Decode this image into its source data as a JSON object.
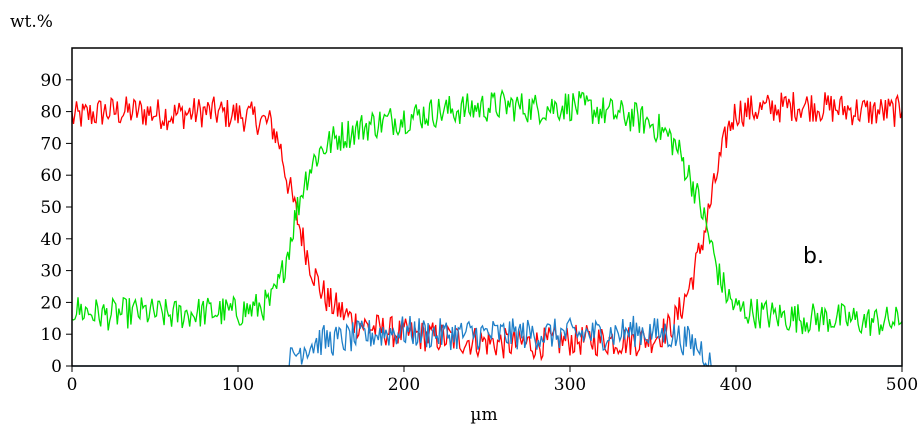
{
  "chart_data": {
    "type": "line",
    "title": "",
    "xlabel": "µm",
    "ylabel": "wt.%",
    "xlim": [
      0,
      500
    ],
    "ylim": [
      0,
      100
    ],
    "x_ticks": [
      0,
      100,
      200,
      300,
      400,
      500
    ],
    "y_ticks": [
      0,
      10,
      20,
      30,
      40,
      50,
      60,
      70,
      80,
      90
    ],
    "grid": false,
    "annotation": "b.",
    "series": [
      {
        "color": "#ff0000",
        "x": [
          0,
          20,
          40,
          60,
          80,
          100,
          110,
          120,
          125,
          130,
          135,
          140,
          145,
          150,
          155,
          160,
          170,
          180,
          200,
          220,
          240,
          260,
          280,
          300,
          320,
          340,
          350,
          360,
          365,
          370,
          375,
          380,
          385,
          390,
          395,
          400,
          420,
          440,
          460,
          480,
          500
        ],
        "y": [
          78,
          80,
          80,
          79,
          80,
          79,
          78,
          76,
          70,
          58,
          48,
          38,
          30,
          24,
          20,
          18,
          14,
          12,
          10,
          9,
          8,
          7,
          7,
          8,
          8,
          8,
          9,
          12,
          16,
          22,
          30,
          40,
          52,
          64,
          74,
          80,
          81,
          82,
          81,
          80,
          80
        ]
      },
      {
        "color": "#00e000",
        "x": [
          0,
          20,
          40,
          60,
          80,
          100,
          110,
          120,
          125,
          130,
          135,
          140,
          145,
          150,
          155,
          160,
          170,
          180,
          200,
          220,
          240,
          260,
          280,
          300,
          320,
          340,
          350,
          360,
          365,
          370,
          375,
          380,
          385,
          390,
          395,
          400,
          420,
          440,
          460,
          480,
          500
        ],
        "y": [
          18,
          16,
          17,
          16,
          17,
          17,
          18,
          20,
          26,
          36,
          48,
          58,
          64,
          68,
          70,
          72,
          74,
          76,
          78,
          80,
          81,
          82,
          81,
          82,
          80,
          78,
          76,
          72,
          68,
          62,
          56,
          48,
          38,
          28,
          22,
          18,
          16,
          15,
          15,
          14,
          14
        ]
      },
      {
        "color": "#1f7fc8",
        "x": [
          0,
          130,
          135,
          140,
          150,
          160,
          170,
          180,
          200,
          220,
          240,
          260,
          280,
          300,
          320,
          340,
          360,
          370,
          380,
          385,
          500
        ],
        "y": [
          0,
          0,
          4,
          6,
          8,
          8,
          9,
          10,
          11,
          10,
          10,
          10,
          10,
          10,
          10,
          11,
          10,
          8,
          5,
          0,
          0
        ]
      }
    ]
  }
}
